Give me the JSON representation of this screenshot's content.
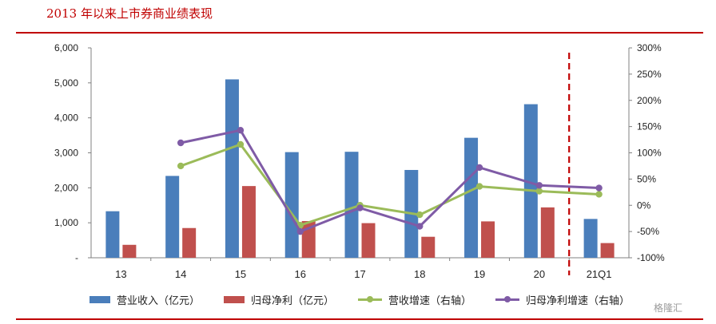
{
  "header": {
    "title": "2013 年以来上市券商业绩表现"
  },
  "chart_data": {
    "type": "bar",
    "categories": [
      "13",
      "14",
      "15",
      "16",
      "17",
      "18",
      "19",
      "20",
      "21Q1"
    ],
    "series": [
      {
        "name": "营业收入（亿元）",
        "kind": "bar",
        "axis": "left",
        "color": "#4a7ebb",
        "values": [
          1330,
          2340,
          5100,
          3020,
          3030,
          2510,
          3430,
          4390,
          1110
        ]
      },
      {
        "name": "归母净利（亿元）",
        "kind": "bar",
        "axis": "left",
        "color": "#c0504d",
        "values": [
          370,
          850,
          2050,
          1050,
          990,
          600,
          1040,
          1440,
          420
        ]
      },
      {
        "name": "营收增速（右轴）",
        "kind": "line",
        "axis": "right",
        "color": "#9bbb59",
        "values": [
          null,
          75,
          116,
          -38,
          0,
          -18,
          36,
          27,
          21
        ]
      },
      {
        "name": "归母净利增速（右轴）",
        "kind": "line",
        "axis": "right",
        "color": "#7f5ba6",
        "values": [
          null,
          119,
          143,
          -50,
          -5,
          -40,
          72,
          38,
          33
        ]
      }
    ],
    "y_left": {
      "range": [
        0,
        6000
      ],
      "ticks": [
        {
          "v": 0,
          "label": "-"
        },
        {
          "v": 1000,
          "label": "1,000"
        },
        {
          "v": 2000,
          "label": "2,000"
        },
        {
          "v": 3000,
          "label": "3,000"
        },
        {
          "v": 4000,
          "label": "4,000"
        },
        {
          "v": 5000,
          "label": "5,000"
        },
        {
          "v": 6000,
          "label": "6,000"
        }
      ]
    },
    "y_right": {
      "range": [
        -100,
        300
      ],
      "ticks": [
        {
          "v": -100,
          "label": "-100%"
        },
        {
          "v": -50,
          "label": "-50%"
        },
        {
          "v": 0,
          "label": "0%"
        },
        {
          "v": 50,
          "label": "50%"
        },
        {
          "v": 100,
          "label": "100%"
        },
        {
          "v": 150,
          "label": "150%"
        },
        {
          "v": 200,
          "label": "200%"
        },
        {
          "v": 250,
          "label": "250%"
        },
        {
          "v": 300,
          "label": "300%"
        }
      ]
    },
    "divider_after_category": "20",
    "grid": false,
    "legend_position": "bottom"
  },
  "watermark": "格隆汇"
}
